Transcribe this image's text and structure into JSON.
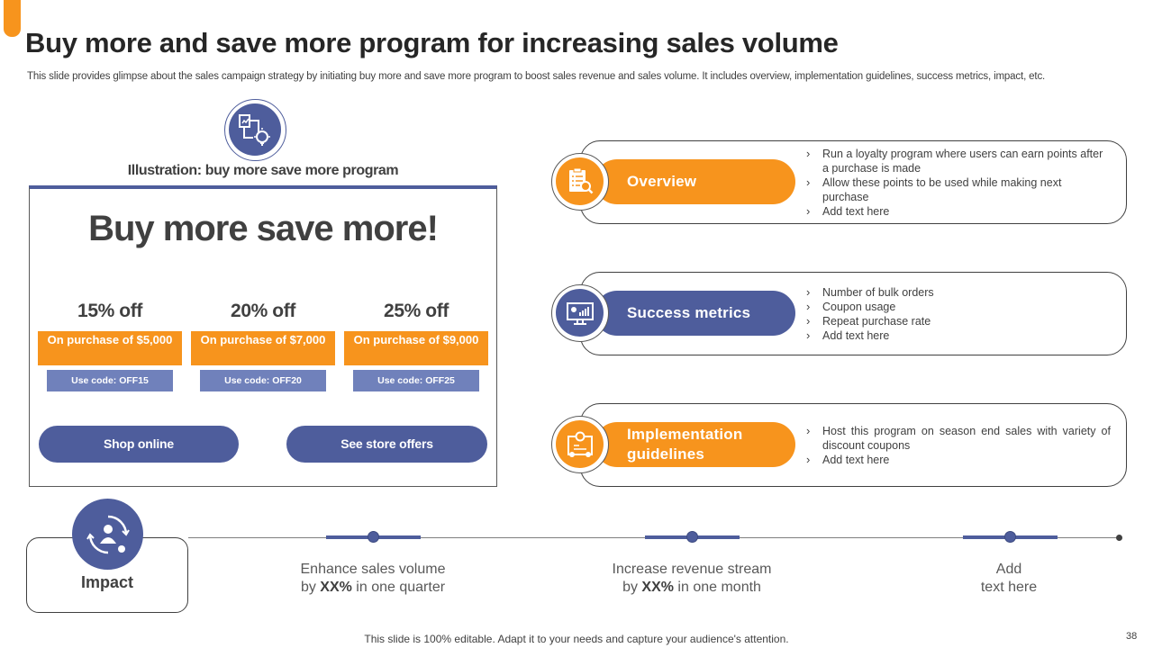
{
  "slide": {
    "title": "Buy more and save more program for increasing sales volume",
    "subtitle": "This slide provides glimpse about the sales campaign strategy by initiating buy more and save more program to boost sales revenue and sales volume. It includes overview, implementation guidelines, success metrics, impact, etc.",
    "footer": "This slide is 100% editable. Adapt it to your needs and capture your audience's attention.",
    "page_number": "38"
  },
  "illustration": {
    "caption": "Illustration: buy more save more program",
    "icon": "presentation-bulb-icon"
  },
  "promo": {
    "headline": "Buy more save more!",
    "offers": [
      {
        "discount": "15% off",
        "condition": "On purchase of $5,000",
        "code": "Use code: OFF15"
      },
      {
        "discount": "20% off",
        "condition": "On purchase of $7,000",
        "code": "Use code: OFF20"
      },
      {
        "discount": "25% off",
        "condition": "On purchase of $9,000",
        "code": "Use code: OFF25"
      }
    ],
    "buttons": {
      "shop_online": "Shop online",
      "store_offers": "See store offers"
    }
  },
  "cards": [
    {
      "label": "Overview",
      "icon": "checklist-search-icon",
      "bullets": [
        "Run a loyalty program where users can earn points after a purchase is made",
        "Allow these points to be used while making next purchase",
        "Add text here"
      ]
    },
    {
      "label": "Success metrics",
      "icon": "monitor-chart-icon",
      "bullets": [
        "Number of bulk orders",
        "Coupon usage",
        "Repeat purchase rate",
        "Add text here"
      ]
    },
    {
      "label": "Implementation guidelines",
      "icon": "blueprint-idea-icon",
      "bullets": [
        "Host this program on season end sales with variety of discount coupons",
        "Add text here"
      ]
    }
  ],
  "impact": {
    "label": "Impact",
    "icon": "person-cycle-icon",
    "items": [
      {
        "line1": "Enhance sales volume",
        "pre": "by ",
        "bold": "XX%",
        "post": " in one quarter"
      },
      {
        "line1": "Increase revenue stream",
        "pre": "by ",
        "bold": "XX%",
        "post": " in one month"
      },
      {
        "line1": "Add",
        "pre": "text here",
        "bold": "",
        "post": ""
      }
    ]
  },
  "colors": {
    "accent_orange": "#f7941d",
    "accent_blue": "#4e5d9c",
    "code_blue": "#7081bb",
    "text_dark": "#404040"
  }
}
